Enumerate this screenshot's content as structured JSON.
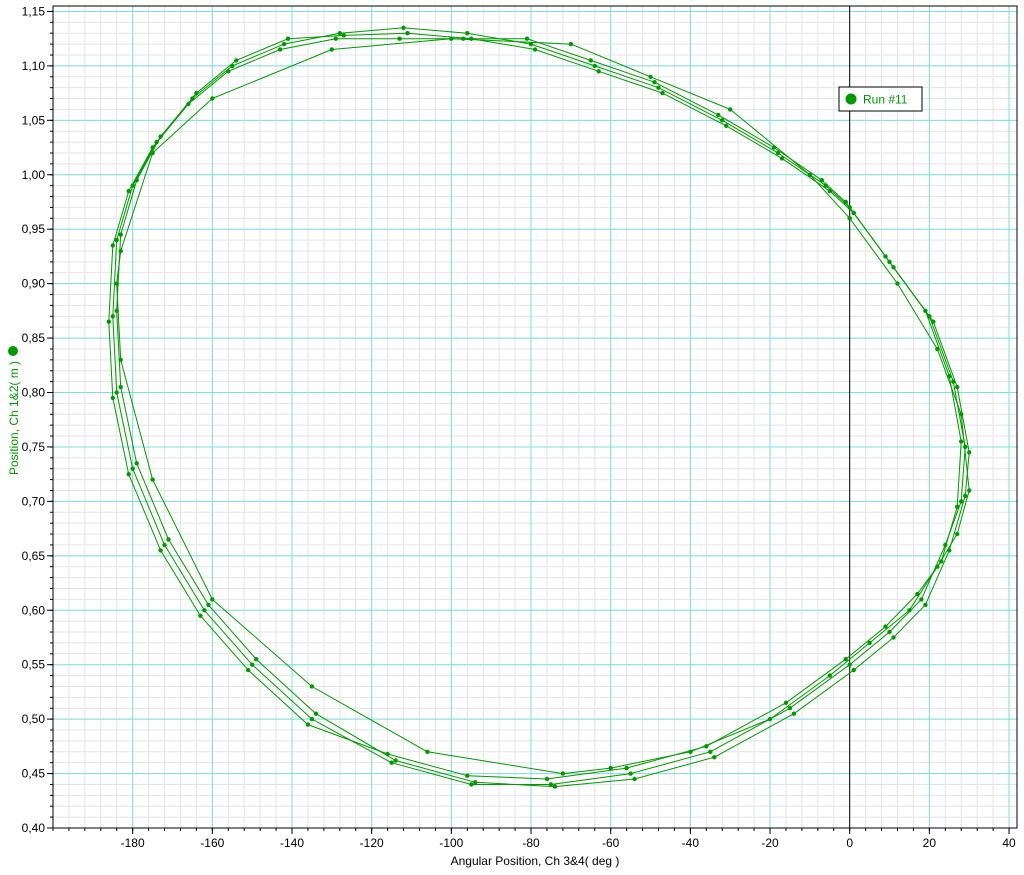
{
  "colors": {
    "series": "#009900",
    "major_grid": "#7fdfdf",
    "minor_grid": "#e4e4e4",
    "zero_line": "#000000"
  },
  "chart_data": {
    "type": "scatter",
    "xlabel": "Angular Position, Ch 3&4( deg )",
    "ylabel": "Position, Ch 1&2( m )",
    "xlim": [
      -200,
      42
    ],
    "ylim": [
      0.4,
      1.155
    ],
    "x_ticks": [
      -180,
      -160,
      -140,
      -120,
      -100,
      -80,
      -60,
      -40,
      -20,
      0,
      20,
      40
    ],
    "y_ticks": [
      0.4,
      0.45,
      0.5,
      0.55,
      0.6,
      0.65,
      0.7,
      0.75,
      0.8,
      0.85,
      0.9,
      0.95,
      1.0,
      1.05,
      1.1,
      1.15
    ],
    "x_tick_labels": [
      "-180",
      "-160",
      "-140",
      "-120",
      "-100",
      "-80",
      "-60",
      "-40",
      "-20",
      "0",
      "20",
      "40"
    ],
    "y_tick_labels": [
      "0,40",
      "0,45",
      "0,50",
      "0,55",
      "0,60",
      "0,65",
      "0,70",
      "0,75",
      "0,80",
      "0,85",
      "0,90",
      "0,95",
      "1,00",
      "1,05",
      "1,10",
      "1,15"
    ],
    "grid": true,
    "legend_position": "top-right",
    "series": [
      {
        "name": "Run #11",
        "connected": true,
        "loops": [
          {
            "x": [
              0,
              10,
              20,
              26,
              29,
              28,
              24,
              18,
              10,
              0,
              -15,
              -35,
              -55,
              -75,
              -95,
              -115,
              -135,
              -150,
              -162,
              -172,
              -180,
              -184,
              -185,
              -184,
              -180,
              -174,
              -165,
              -155,
              -142,
              -128,
              -112,
              -96,
              -80,
              -64,
              -48,
              -32,
              -18,
              -6,
              0
            ],
            "y": [
              0.97,
              0.92,
              0.87,
              0.81,
              0.75,
              0.7,
              0.66,
              0.61,
              0.58,
              0.55,
              0.51,
              0.47,
              0.45,
              0.44,
              0.44,
              0.46,
              0.5,
              0.55,
              0.6,
              0.66,
              0.73,
              0.8,
              0.87,
              0.94,
              0.99,
              1.03,
              1.07,
              1.1,
              1.12,
              1.13,
              1.135,
              1.13,
              1.12,
              1.1,
              1.08,
              1.05,
              1.02,
              0.99,
              0.97
            ]
          },
          {
            "x": [
              1,
              11,
              21,
              27,
              30,
              29,
              25,
              19,
              11,
              1,
              -14,
              -34,
              -54,
              -74,
              -94,
              -114,
              -134,
              -149,
              -161,
              -171,
              -179,
              -183,
              -184,
              -183,
              -179,
              -173,
              -164,
              -154,
              -141,
              -127,
              -111,
              -95,
              -79,
              -63,
              -47,
              -31,
              -17,
              -5,
              1
            ],
            "y": [
              0.965,
              0.915,
              0.865,
              0.805,
              0.745,
              0.705,
              0.655,
              0.605,
              0.575,
              0.545,
              0.505,
              0.465,
              0.445,
              0.438,
              0.442,
              0.462,
              0.505,
              0.555,
              0.605,
              0.665,
              0.735,
              0.805,
              0.875,
              0.945,
              0.995,
              1.035,
              1.075,
              1.105,
              1.125,
              1.128,
              1.13,
              1.125,
              1.115,
              1.095,
              1.075,
              1.045,
              1.015,
              0.985,
              0.965
            ]
          },
          {
            "x": [
              -1,
              9,
              19,
              25,
              28,
              27,
              23,
              17,
              9,
              -1,
              -16,
              -36,
              -56,
              -76,
              -96,
              -116,
              -136,
              -151,
              -163,
              -173,
              -181,
              -185,
              -186,
              -185,
              -181,
              -175,
              -166,
              -156,
              -143,
              -129,
              -113,
              -97,
              -81,
              -65,
              -49,
              -33,
              -19,
              -7,
              -1
            ],
            "y": [
              0.975,
              0.925,
              0.875,
              0.815,
              0.755,
              0.695,
              0.645,
              0.615,
              0.585,
              0.555,
              0.515,
              0.475,
              0.455,
              0.445,
              0.448,
              0.468,
              0.495,
              0.545,
              0.595,
              0.655,
              0.725,
              0.795,
              0.865,
              0.935,
              0.985,
              1.025,
              1.065,
              1.095,
              1.115,
              1.125,
              1.125,
              1.125,
              1.125,
              1.105,
              1.085,
              1.055,
              1.025,
              0.995,
              0.975
            ]
          },
          {
            "x": [
              0,
              12,
              22,
              28,
              30,
              27,
              22,
              15,
              5,
              -5,
              -20,
              -40,
              -60,
              -72,
              -106,
              -135,
              -160,
              -175,
              -183,
              -184,
              -183,
              -175,
              -160,
              -130,
              -100,
              -70,
              -50,
              -30,
              -10,
              0
            ],
            "y": [
              0.96,
              0.9,
              0.84,
              0.78,
              0.71,
              0.67,
              0.64,
              0.6,
              0.57,
              0.54,
              0.5,
              0.47,
              0.455,
              0.45,
              0.47,
              0.53,
              0.61,
              0.72,
              0.83,
              0.9,
              0.93,
              1.02,
              1.07,
              1.115,
              1.125,
              1.12,
              1.09,
              1.06,
              1.0,
              0.96
            ]
          }
        ]
      }
    ]
  }
}
